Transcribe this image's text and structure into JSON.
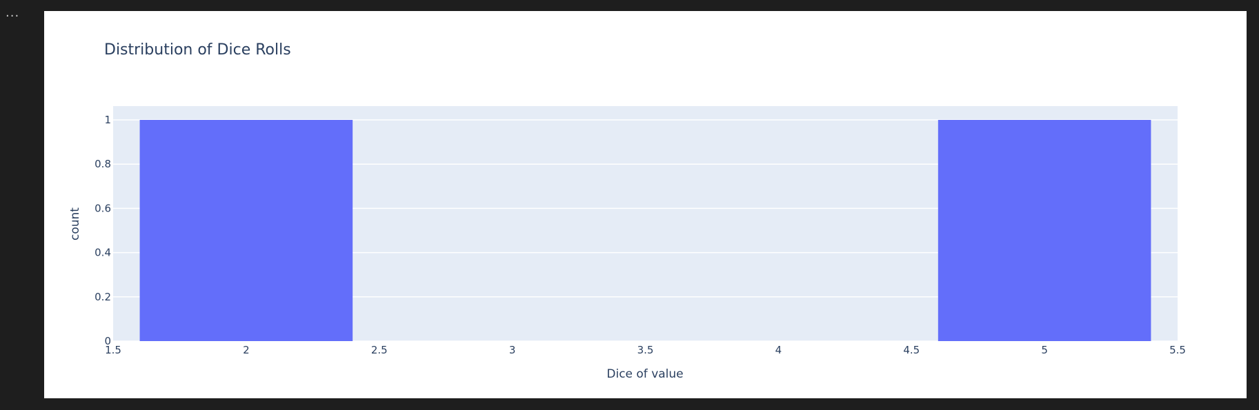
{
  "cell": {
    "menu_label": "..."
  },
  "chart_data": {
    "type": "bar",
    "title": "Distribution of Dice Rolls",
    "xlabel": "Dice of value",
    "ylabel": "count",
    "xlim": [
      1.5,
      5.5
    ],
    "ylim": [
      0,
      1
    ],
    "x_ticks": [
      "1.5",
      "2",
      "2.5",
      "3",
      "3.5",
      "4",
      "4.5",
      "5",
      "5.5"
    ],
    "y_ticks": [
      "0",
      "0.2",
      "0.4",
      "0.6",
      "0.8",
      "1"
    ],
    "bar_width": 0.8,
    "series": [
      {
        "x": [
          2,
          5
        ],
        "values": [
          1,
          1
        ]
      }
    ],
    "grid": true,
    "colors": {
      "bar": "#636efa",
      "plot_bg": "#e5ecf6",
      "grid": "#ffffff",
      "text": "#2a3f5f"
    }
  }
}
